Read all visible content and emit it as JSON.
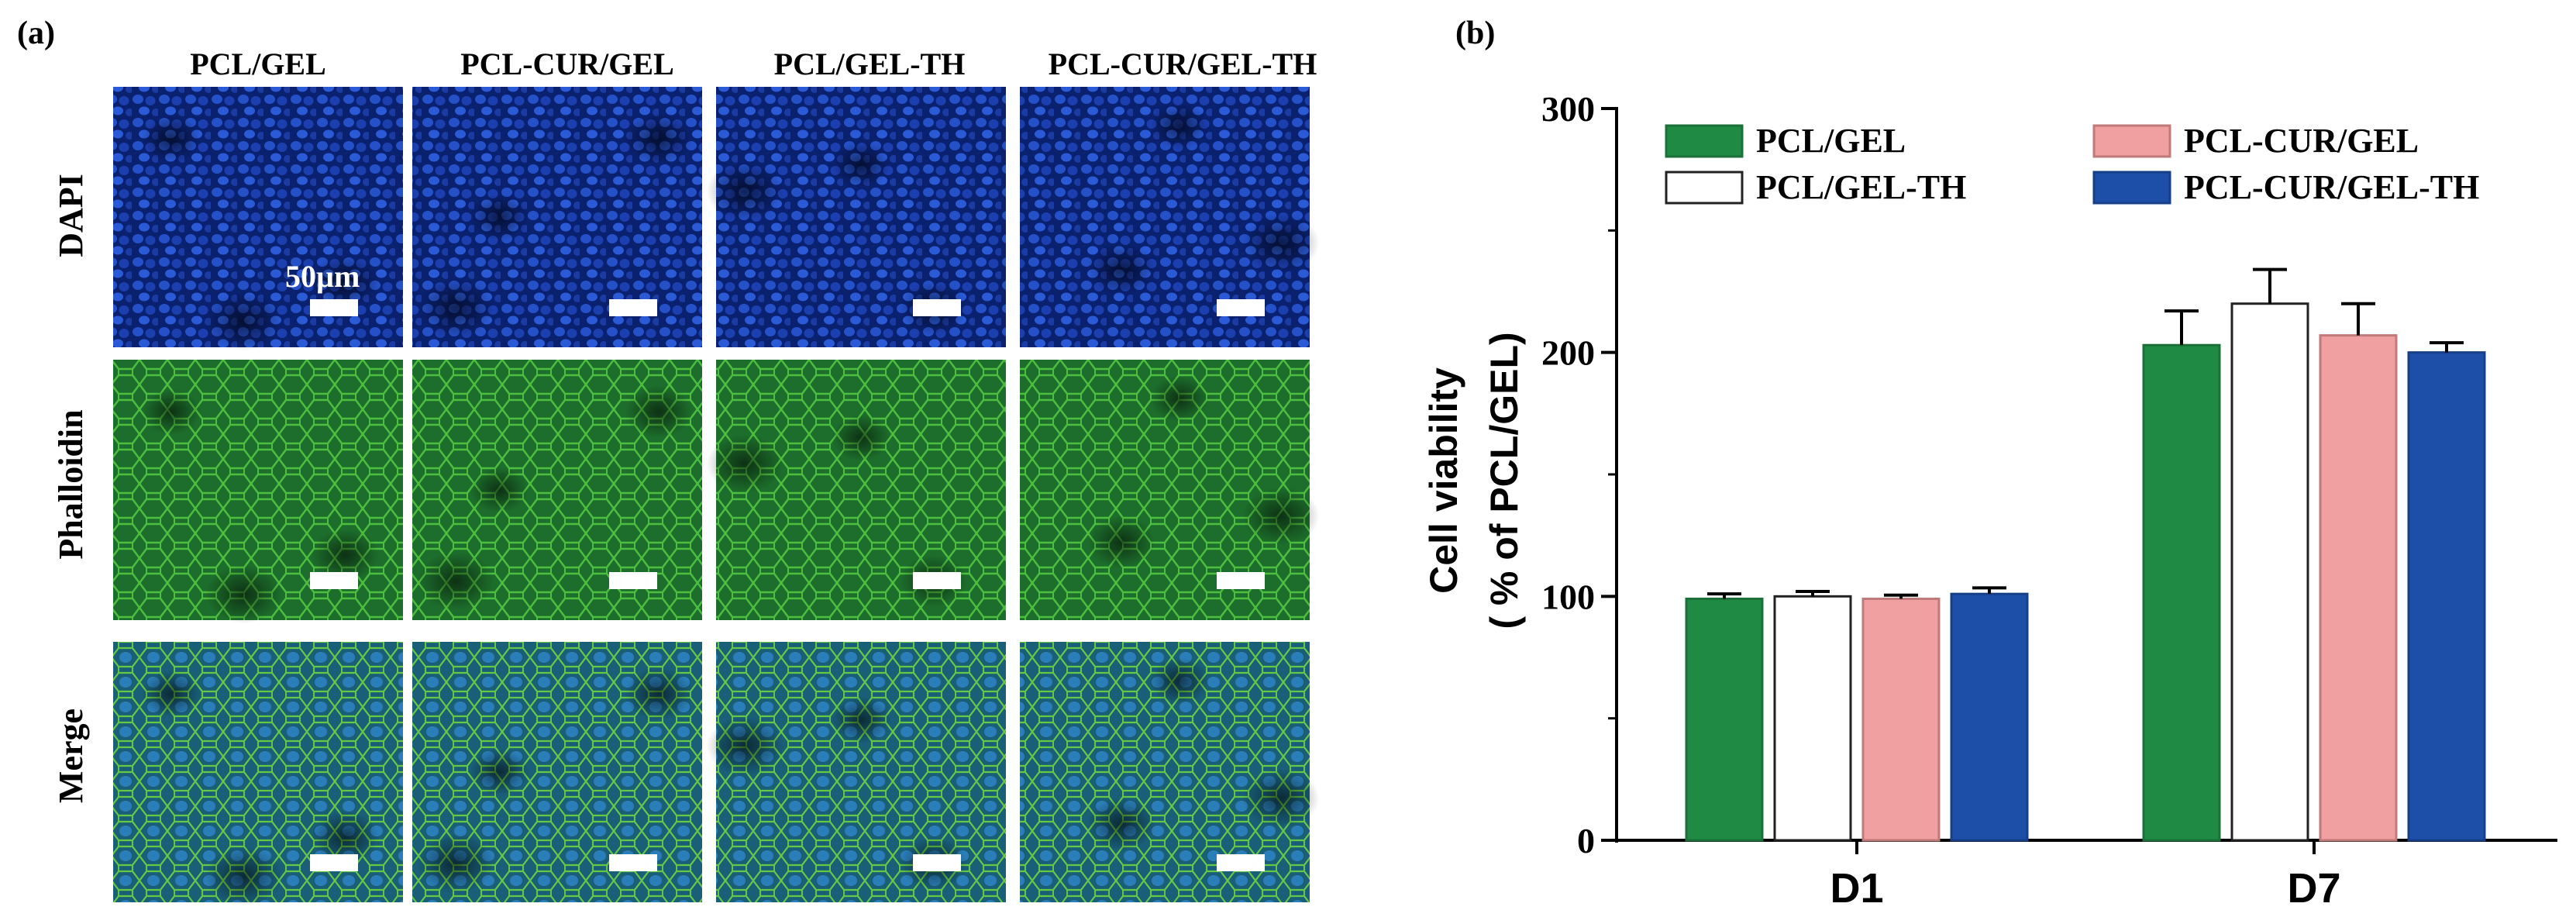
{
  "panel_a": {
    "panel_label": "(a)",
    "columns": [
      "PCL/GEL",
      "PCL-CUR/GEL",
      "PCL/GEL-TH",
      "PCL-CUR/GEL-TH"
    ],
    "rows": [
      {
        "label": "DAPI",
        "stain": "dapi"
      },
      {
        "label": "Phalloidin",
        "stain": "phalloidin"
      },
      {
        "label": "Merge",
        "stain": "merge"
      }
    ],
    "scale_bar_label": "50µm",
    "colors": {
      "dapi": "#0d2a8c",
      "phalloidin": "#1f7a2e",
      "merge": "#1d6a72",
      "scale_bar": "#ffffff"
    }
  },
  "panel_b": {
    "panel_label": "(b)"
  },
  "chart_data": {
    "type": "bar",
    "categories": [
      "D1",
      "D7"
    ],
    "series": [
      {
        "name": "PCL/GEL",
        "values": [
          99,
          203
        ],
        "errors": [
          2,
          14
        ],
        "color": "#1f8a43",
        "border": "#1a7038"
      },
      {
        "name": "PCL/GEL-TH",
        "values": [
          100,
          220
        ],
        "errors": [
          2,
          14
        ],
        "color": "#ffffff",
        "border": "#222222"
      },
      {
        "name": "PCL-CUR/GEL",
        "values": [
          99,
          207
        ],
        "errors": [
          1.5,
          13
        ],
        "color": "#f0a0a0",
        "border": "#c07a7a"
      },
      {
        "name": "PCL-CUR/GEL-TH",
        "values": [
          101,
          200
        ],
        "errors": [
          2.5,
          4
        ],
        "color": "#1d4fa8",
        "border": "#163f88"
      }
    ],
    "legend_order": [
      "PCL/GEL",
      "PCL-CUR/GEL",
      "PCL/GEL-TH",
      "PCL-CUR/GEL-TH"
    ],
    "legend_placement": "top",
    "title": "",
    "xlabel": "",
    "ylabel_line1": "Cell viability",
    "ylabel_line2": "( % of PCL/GEL)",
    "ylim": [
      0,
      300
    ],
    "yticks": [
      0,
      100,
      200,
      300
    ],
    "grid": false
  }
}
